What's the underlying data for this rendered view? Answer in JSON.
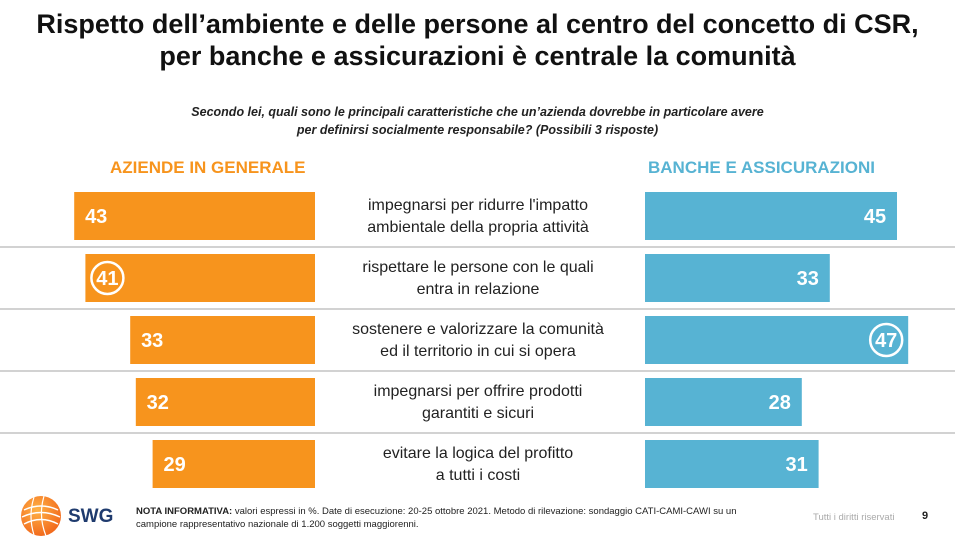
{
  "title_line1": "Rispetto dell’ambiente e delle persone al centro del concetto di CSR,",
  "title_line2": "per banche e assicurazioni è centrale la comunità",
  "question_line1": "Secondo lei, quali sono le principali caratteristiche che un’azienda dovrebbe in particolare avere",
  "question_line2": "per definirsi socialmente responsabile? (Possibili 3 risposte)",
  "colors": {
    "orange": "#f7941d",
    "blue": "#57b3d3",
    "highlight": "#ffffff",
    "separator": "#a6a6a6"
  },
  "chart_data": {
    "type": "bar",
    "title": "Rispetto dell’ambiente e delle persone al centro del concetto di CSR, per banche e assicurazioni è centrale la comunità",
    "unit": "%",
    "categories": [
      [
        "impegnarsi per ridurre l'impatto",
        "ambientale della propria attività"
      ],
      [
        "rispettare le persone con le quali",
        "entra in relazione"
      ],
      [
        "sostenere e valorizzare la comunità",
        "ed il territorio in cui si opera"
      ],
      [
        "impegnarsi per offrire prodotti",
        "garantiti e sicuri"
      ],
      [
        "evitare la logica del profitto",
        "a tutti i costi"
      ]
    ],
    "series": [
      {
        "name": "AZIENDE IN GENERALE",
        "values": [
          43,
          41,
          33,
          32,
          29
        ],
        "highlight_index": 1
      },
      {
        "name": "BANCHE E ASSICURAZIONI",
        "values": [
          45,
          33,
          47,
          28,
          31
        ],
        "highlight_index": 2
      }
    ]
  },
  "footer": {
    "note_label": "NOTA INFORMATIVA:",
    "note_text": " valori espressi in %. Date di esecuzione: 20-25 ottobre 2021. Metodo di rilevazione: sondaggio CATI-CAMI-CAWI su un campione rappresentativo nazionale di 1.200 soggetti maggiorenni.",
    "rights": "Tutti i diritti riservati",
    "page": "9",
    "logo": "SWG"
  }
}
